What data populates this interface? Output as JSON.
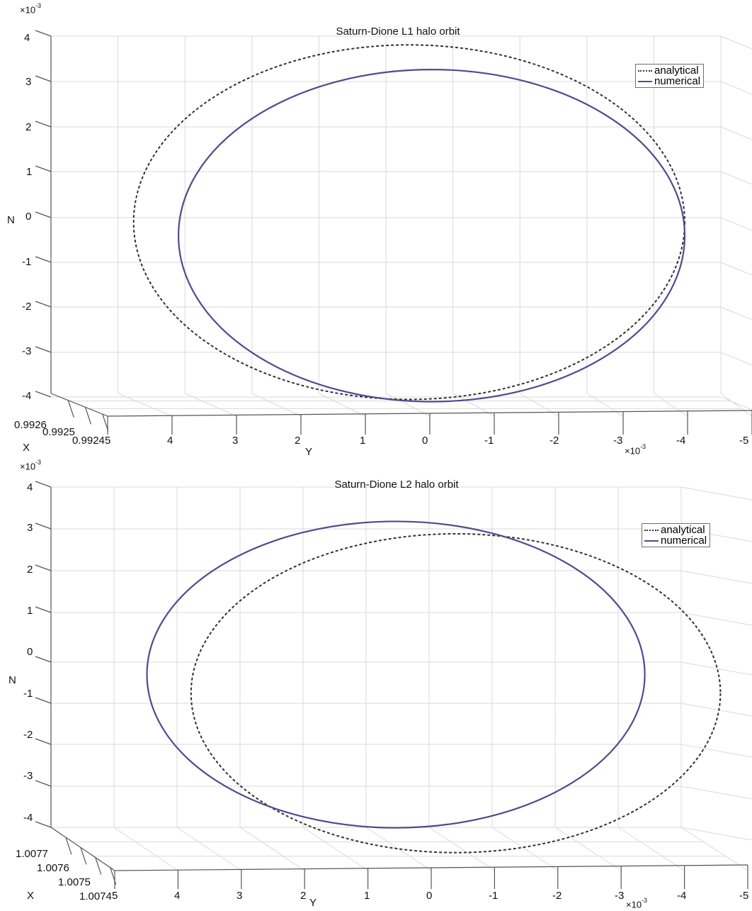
{
  "chart_data": [
    {
      "type": "line",
      "title": "Saturn-Dione L1 halo orbit",
      "xlabel": "X",
      "ylabel": "Y",
      "zlabel": "N",
      "y_exponent_label": "×10",
      "y_exponent_power": "-3",
      "z_exponent_label": "×10",
      "z_exponent_power": "-3",
      "x_ticks": [
        "0.9926",
        "0.9925",
        "0.9924"
      ],
      "y_ticks": [
        "5",
        "4",
        "3",
        "2",
        "1",
        "0",
        "-1",
        "-2",
        "-3",
        "-4",
        "-5"
      ],
      "z_ticks": [
        "4",
        "3",
        "2",
        "1",
        "0",
        "-1",
        "-2",
        "-3",
        "-4"
      ],
      "ylim": [
        -5,
        5
      ],
      "zlim": [
        -4,
        4
      ],
      "grid": true,
      "legend_position": "top-right",
      "series": [
        {
          "name": "analytical",
          "style": "dashed",
          "color": "#333333",
          "center_y": 0.3,
          "center_n": -0.1,
          "radius_y": 4.3,
          "radius_n": 3.95
        },
        {
          "name": "numerical",
          "style": "solid",
          "color": "#4b4d8c",
          "center_y": -0.05,
          "center_n": -0.4,
          "radius_y": 3.95,
          "radius_n": 3.7
        }
      ]
    },
    {
      "type": "line",
      "title": "Saturn-Dione L2 halo orbit",
      "xlabel": "X",
      "ylabel": "Y",
      "zlabel": "N",
      "y_exponent_label": "×10",
      "y_exponent_power": "-3",
      "z_exponent_label": "×10",
      "z_exponent_power": "-3",
      "x_ticks": [
        "1.0077",
        "1.0076",
        "1.0075",
        "1.0074"
      ],
      "y_ticks": [
        "5",
        "4",
        "3",
        "2",
        "1",
        "0",
        "-1",
        "-2",
        "-3",
        "-4",
        "-5"
      ],
      "z_ticks": [
        "4",
        "3",
        "2",
        "1",
        "0",
        "-1",
        "-2",
        "-3",
        "-4"
      ],
      "ylim": [
        -5,
        5
      ],
      "zlim": [
        -4,
        4
      ],
      "grid": true,
      "legend_position": "top-right",
      "series": [
        {
          "name": "analytical",
          "style": "dashed",
          "color": "#333333",
          "center_y": -0.4,
          "center_n": -0.75,
          "radius_y": 4.2,
          "radius_n": 3.85
        },
        {
          "name": "numerical",
          "style": "solid",
          "color": "#4b4d8c",
          "center_y": 0.55,
          "center_n": -0.3,
          "radius_y": 3.95,
          "radius_n": 3.7
        }
      ]
    }
  ]
}
